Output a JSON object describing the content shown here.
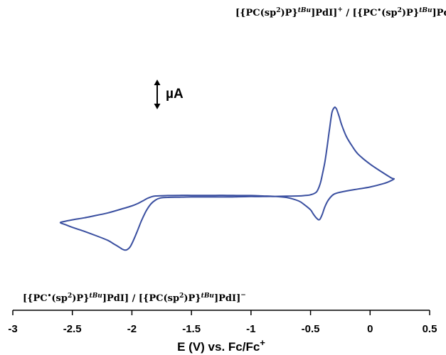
{
  "chart_data": {
    "type": "line",
    "title": "",
    "xlabel_main": "E (V) vs. Fc/Fc",
    "xlabel_sup": "+",
    "ylabel": "",
    "xlim": [
      -3,
      0.5
    ],
    "grid": false,
    "x_ticks": [
      -3,
      -2.5,
      -2,
      -1.5,
      -1,
      -0.5,
      0,
      0.5
    ],
    "x_tick_labels": [
      "-3",
      "-2.5",
      "-2",
      "-1.5",
      "-1",
      "-0.5",
      "0",
      "0.5"
    ],
    "y_axis": "none",
    "scale_bar_label": "µA",
    "series_color": "#3a4fa0",
    "series": [
      {
        "x": [
          -1.3,
          -1.4,
          -1.5,
          -1.6,
          -1.7,
          -1.76,
          -1.8,
          -1.84,
          -1.88,
          -1.92,
          -1.96,
          -2.0,
          -2.02,
          -2.04,
          -2.06,
          -2.08,
          -2.1,
          -2.15,
          -2.2,
          -2.3,
          -2.4,
          -2.5,
          -2.56,
          -2.6,
          -2.58,
          -2.5,
          -2.4,
          -2.3,
          -2.2,
          -2.1,
          -2.0,
          -1.95,
          -1.9,
          -1.87,
          -1.84,
          -1.8,
          -1.7,
          -1.6,
          -1.5,
          -1.4,
          -1.3,
          -1.2,
          -1.1,
          -1.0,
          -0.9,
          -0.8,
          -0.7,
          -0.6,
          -0.55,
          -0.5,
          -0.48,
          -0.46,
          -0.44,
          -0.43,
          -0.42,
          -0.4,
          -0.38,
          -0.35,
          -0.3,
          -0.2,
          -0.1,
          0.0,
          0.1,
          0.15,
          0.2,
          0.18,
          0.1,
          0.0,
          -0.1,
          -0.15,
          -0.2,
          -0.24,
          -0.26,
          -0.28,
          -0.29,
          -0.3,
          -0.32,
          -0.34,
          -0.36,
          -0.38,
          -0.4,
          -0.42,
          -0.45,
          -0.5,
          -0.55,
          -0.6,
          -0.7,
          -0.8,
          -0.9,
          -1.0,
          -1.1,
          -1.2,
          -1.3
        ],
        "y": [
          -0.55,
          -0.55,
          -0.55,
          -0.56,
          -0.57,
          -0.6,
          -0.7,
          -0.9,
          -1.25,
          -1.75,
          -2.35,
          -2.9,
          -3.1,
          -3.2,
          -3.22,
          -3.18,
          -3.1,
          -2.92,
          -2.74,
          -2.5,
          -2.28,
          -2.08,
          -1.94,
          -1.85,
          -1.8,
          -1.7,
          -1.6,
          -1.48,
          -1.35,
          -1.18,
          -1.0,
          -0.88,
          -0.72,
          -0.62,
          -0.55,
          -0.5,
          -0.48,
          -0.47,
          -0.47,
          -0.47,
          -0.47,
          -0.47,
          -0.48,
          -0.48,
          -0.5,
          -0.52,
          -0.58,
          -0.75,
          -0.95,
          -1.2,
          -1.38,
          -1.55,
          -1.67,
          -1.7,
          -1.66,
          -1.4,
          -1.05,
          -0.7,
          -0.4,
          -0.25,
          -0.15,
          -0.05,
          0.1,
          0.2,
          0.35,
          0.4,
          0.7,
          1.1,
          1.6,
          2.0,
          2.5,
          3.1,
          3.5,
          3.85,
          3.94,
          3.95,
          3.7,
          2.9,
          2.0,
          1.2,
          0.6,
          0.1,
          -0.3,
          -0.44,
          -0.48,
          -0.5,
          -0.51,
          -0.52,
          -0.53,
          -0.53,
          -0.54,
          -0.55,
          -0.55
        ]
      }
    ],
    "annotations": {
      "top": {
        "part1": "[{PC(sp",
        "part1_sup": "2",
        "part2": ")P}",
        "part2_sup": "tBu",
        "part3": "]PdI]",
        "part3_sup": "+",
        "part4": " / [{PC",
        "part4_sup": "•",
        "part5": "(sp",
        "part5_sup": "2",
        "part6": ")P}",
        "part6_sup": "tBu",
        "part7": "]PdI]"
      },
      "bottom": {
        "part1": "[{PC",
        "part1_sup": "•",
        "part2": "(sp",
        "part2_sup": "2",
        "part3": ")P}",
        "part3_sup": "tBu",
        "part4": "]PdI] / [{PC(sp",
        "part4_sup": "2",
        "part5": ")P}",
        "part5_sup": "tBu",
        "part6": "]PdI]",
        "part6_sup": "−"
      }
    }
  }
}
